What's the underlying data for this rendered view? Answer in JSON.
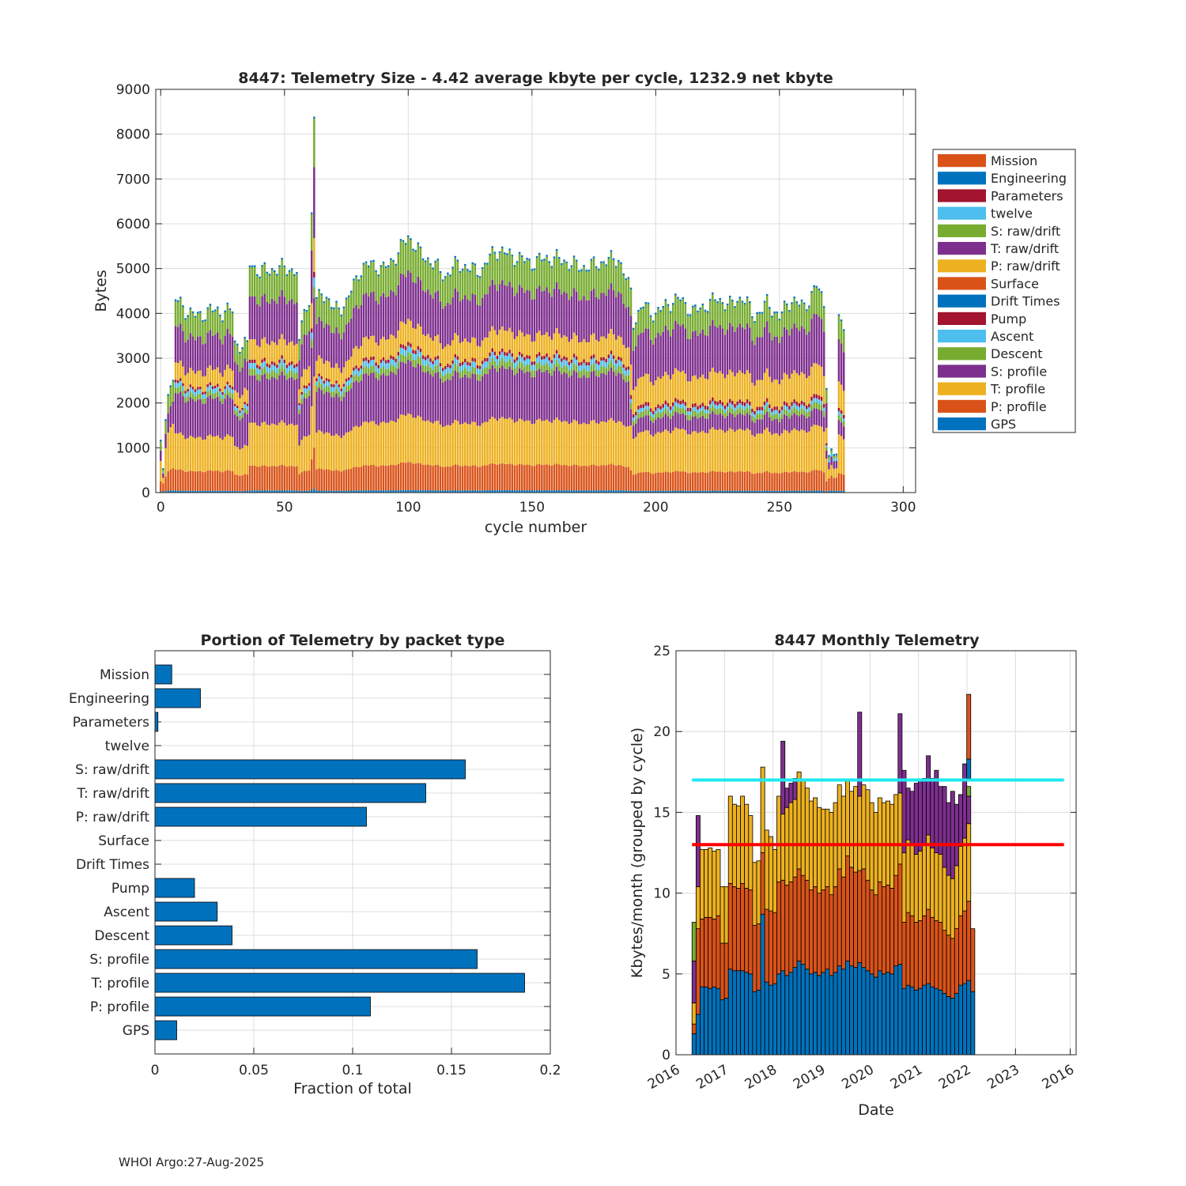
{
  "footer": "WHOI Argo:27-Aug-2025",
  "colors": {
    "blue": "#0072bd",
    "orange": "#d95319",
    "yellow": "#edb120",
    "purple": "#7e2f8e",
    "green": "#77ac30",
    "cyan": "#4dbeee",
    "red": "#a2142f",
    "line_cyan": "#1ee8f0",
    "line_red": "#ff0000",
    "grid": "#dcdcdc",
    "axis": "#262626"
  },
  "chart_data": [
    {
      "id": "telemetry-size",
      "type": "bar",
      "stacked": true,
      "title": "8447: Telemetry Size - 4.42 average kbyte per cycle, 1232.9 net kbyte",
      "xlabel": "cycle number",
      "ylabel": "Bytes",
      "xlim": [
        -2,
        305
      ],
      "ylim": [
        0,
        9000
      ],
      "xticks": [
        0,
        50,
        100,
        150,
        200,
        250,
        300
      ],
      "yticks": [
        0,
        1000,
        2000,
        3000,
        4000,
        5000,
        6000,
        7000,
        8000,
        9000
      ],
      "legend_position": "right-outside",
      "legend": [
        {
          "name": "Mission",
          "color": "#d95319"
        },
        {
          "name": "Engineering",
          "color": "#0072bd"
        },
        {
          "name": "Parameters",
          "color": "#a2142f"
        },
        {
          "name": "twelve",
          "color": "#4dbeee"
        },
        {
          "name": "S: raw/drift",
          "color": "#77ac30"
        },
        {
          "name": "T: raw/drift",
          "color": "#7e2f8e"
        },
        {
          "name": "P: raw/drift",
          "color": "#edb120"
        },
        {
          "name": "Surface",
          "color": "#d95319"
        },
        {
          "name": "Drift Times",
          "color": "#0072bd"
        },
        {
          "name": "Pump",
          "color": "#a2142f"
        },
        {
          "name": "Ascent",
          "color": "#4dbeee"
        },
        {
          "name": "Descent",
          "color": "#77ac30"
        },
        {
          "name": "S: profile",
          "color": "#7e2f8e"
        },
        {
          "name": "T: profile",
          "color": "#edb120"
        },
        {
          "name": "P: profile",
          "color": "#d95319"
        },
        {
          "name": "GPS",
          "color": "#0072bd"
        }
      ],
      "stack_order": [
        "GPS",
        "P: profile",
        "T: profile",
        "S: profile",
        "Descent",
        "Ascent",
        "Pump",
        "P: raw/drift",
        "T: raw/drift",
        "S: raw/drift",
        "Mission",
        "Engineering"
      ],
      "cycles_shown": "0-276",
      "total_profile": [
        [
          0,
          1050
        ],
        [
          1,
          330
        ],
        [
          2,
          1650
        ],
        [
          3,
          2350
        ],
        [
          5,
          2400
        ],
        [
          6,
          4300
        ],
        [
          10,
          4050
        ],
        [
          15,
          3900
        ],
        [
          20,
          4050
        ],
        [
          25,
          4000
        ],
        [
          29,
          4050
        ],
        [
          30,
          3300
        ],
        [
          35,
          3250
        ],
        [
          36,
          5100
        ],
        [
          40,
          4900
        ],
        [
          45,
          4950
        ],
        [
          50,
          5000
        ],
        [
          55,
          4900
        ],
        [
          56,
          3200
        ],
        [
          58,
          4200
        ],
        [
          60,
          4100
        ],
        [
          62,
          8350
        ],
        [
          63,
          4200
        ],
        [
          65,
          4500
        ],
        [
          70,
          4050
        ],
        [
          75,
          4200
        ],
        [
          80,
          4900
        ],
        [
          85,
          5100
        ],
        [
          90,
          4950
        ],
        [
          95,
          5250
        ],
        [
          100,
          5700
        ],
        [
          105,
          5300
        ],
        [
          110,
          5100
        ],
        [
          115,
          4800
        ],
        [
          120,
          5100
        ],
        [
          125,
          4950
        ],
        [
          130,
          4950
        ],
        [
          135,
          5400
        ],
        [
          140,
          5300
        ],
        [
          145,
          5200
        ],
        [
          150,
          5100
        ],
        [
          155,
          5200
        ],
        [
          160,
          5200
        ],
        [
          165,
          5100
        ],
        [
          170,
          5000
        ],
        [
          175,
          5050
        ],
        [
          180,
          5150
        ],
        [
          185,
          5200
        ],
        [
          190,
          4450
        ],
        [
          191,
          3800
        ],
        [
          195,
          4150
        ],
        [
          200,
          3950
        ],
        [
          205,
          4200
        ],
        [
          210,
          4300
        ],
        [
          215,
          4000
        ],
        [
          220,
          4150
        ],
        [
          225,
          4300
        ],
        [
          230,
          4150
        ],
        [
          235,
          4350
        ],
        [
          240,
          3900
        ],
        [
          245,
          4200
        ],
        [
          250,
          3900
        ],
        [
          255,
          4300
        ],
        [
          260,
          4100
        ],
        [
          265,
          4600
        ],
        [
          268,
          4200
        ],
        [
          270,
          800
        ],
        [
          272,
          800
        ],
        [
          273,
          850
        ],
        [
          274,
          3850
        ],
        [
          276,
          3800
        ]
      ]
    },
    {
      "id": "portion-by-packet",
      "type": "bar",
      "orientation": "horizontal",
      "title": "Portion of Telemetry by packet type",
      "xlabel": "Fraction of total",
      "xlim": [
        0,
        0.2
      ],
      "xticks": [
        0,
        0.05,
        0.1,
        0.15,
        0.2
      ],
      "xtick_labels": [
        "0",
        "0.05",
        "0.1",
        "0.15",
        "0.2"
      ],
      "categories": [
        "Mission",
        "Engineering",
        "Parameters",
        "twelve",
        "S: raw/drift",
        "T: raw/drift",
        "P: raw/drift",
        "Surface",
        "Drift Times",
        "Pump",
        "Ascent",
        "Descent",
        "S: profile",
        "T: profile",
        "P: profile",
        "GPS"
      ],
      "values": [
        0.0085,
        0.023,
        0.0015,
        0,
        0.157,
        0.137,
        0.107,
        0,
        0,
        0.02,
        0.0315,
        0.039,
        0.163,
        0.187,
        0.109,
        0.011
      ]
    },
    {
      "id": "monthly-telemetry",
      "type": "bar",
      "stacked": true,
      "title": "8447 Monthly Telemetry",
      "xlabel": "Date",
      "ylabel": "Kbytes/month (grouped by cycle)",
      "ylim": [
        0,
        25
      ],
      "yticks": [
        0,
        5,
        10,
        15,
        20,
        25
      ],
      "xtick_labels": [
        "2016",
        "2017",
        "2018",
        "2019",
        "2020",
        "2021",
        "2022",
        "2023",
        "2016"
      ],
      "xlim_years": [
        2016.0,
        2024.25
      ],
      "reference_lines": [
        {
          "y": 17,
          "color": "#1ee8f0"
        },
        {
          "y": 13,
          "color": "#ff0000"
        }
      ],
      "start": 2016.33,
      "month_width": 0.0833,
      "totals": [
        8.2,
        14.8,
        12.7,
        12.7,
        12.8,
        12.6,
        12.7,
        10.4,
        10.4,
        16.0,
        15.5,
        15.4,
        16.0,
        15.5,
        14.8,
        11.9,
        12.0,
        17.8,
        13.9,
        13.5,
        12.7,
        16.0,
        19.4,
        16.5,
        16.8,
        17.1,
        17.5,
        17.0,
        16.5,
        15.7,
        15.9,
        15.3,
        15.2,
        15.2,
        15.0,
        15.6,
        16.7,
        16.0,
        17.0,
        16.3,
        16.6,
        21.2,
        16.7,
        16.4,
        15.6,
        15.0,
        15.9,
        15.6,
        15.7,
        15.5,
        16.1,
        21.1,
        17.6,
        16.5,
        16.3,
        16.8,
        17.0,
        17.1,
        18.5,
        17.1,
        17.6,
        16.6,
        16.6,
        15.6,
        16.3,
        15.5,
        16.1,
        18.0,
        22.3,
        7.8
      ],
      "base_blue": [
        1.3,
        2.5,
        4.2,
        4.2,
        4.1,
        4.2,
        4.1,
        3.4,
        3.5,
        5.3,
        5.2,
        5.2,
        5.2,
        5.1,
        5.0,
        3.9,
        4.0,
        8.7,
        4.5,
        4.3,
        4.4,
        5.0,
        5.2,
        4.9,
        5.1,
        5.4,
        5.8,
        5.6,
        5.3,
        5.0,
        5.1,
        4.9,
        5.1,
        5.3,
        4.9,
        5.1,
        5.5,
        5.3,
        5.8,
        5.5,
        5.4,
        5.7,
        5.4,
        5.2,
        5.0,
        4.8,
        5.2,
        5.0,
        5.1,
        5.0,
        5.5,
        5.6,
        4.1,
        4.3,
        4.2,
        4.0,
        4.1,
        4.3,
        4.4,
        4.2,
        4.1,
        4.0,
        3.8,
        3.6,
        3.5,
        3.8,
        4.3,
        4.4,
        4.6,
        3.9
      ],
      "mid_orange": [
        1.9,
        7.8,
        8.4,
        8.5,
        8.5,
        8.4,
        8.6,
        6.9,
        6.9,
        10.6,
        10.4,
        10.3,
        10.6,
        10.3,
        10.2,
        8.0,
        8.1,
        12.5,
        9.0,
        8.9,
        8.8,
        10.7,
        10.8,
        10.5,
        10.7,
        11.0,
        11.5,
        11.1,
        10.8,
        10.2,
        10.4,
        10.0,
        10.2,
        10.4,
        9.9,
        10.4,
        11.5,
        11.0,
        12.3,
        11.6,
        11.3,
        11.4,
        11.5,
        10.8,
        10.2,
        9.9,
        10.7,
        10.4,
        10.5,
        10.3,
        11.1,
        11.8,
        8.2,
        8.8,
        8.6,
        8.2,
        8.3,
        8.6,
        9.0,
        8.5,
        8.3,
        8.2,
        7.7,
        7.4,
        7.2,
        7.8,
        8.6,
        8.9,
        9.5,
        7.8
      ],
      "mid_yellow": [
        3.2,
        10.4,
        12.7,
        12.7,
        12.8,
        12.6,
        12.7,
        10.4,
        10.4,
        16.0,
        15.5,
        15.4,
        16.0,
        15.5,
        14.8,
        11.9,
        12.0,
        17.8,
        13.9,
        13.5,
        12.7,
        16.0,
        14.9,
        15.3,
        15.6,
        15.8,
        17.5,
        17.0,
        16.5,
        15.7,
        15.9,
        15.3,
        15.2,
        15.2,
        15.0,
        15.6,
        16.7,
        16.0,
        17.0,
        16.3,
        16.6,
        16.0,
        16.7,
        16.4,
        15.6,
        15.0,
        15.9,
        15.6,
        15.7,
        15.5,
        16.1,
        16.2,
        12.5,
        13.3,
        13.0,
        12.4,
        12.6,
        13.0,
        13.6,
        12.8,
        12.5,
        12.4,
        11.6,
        11.1,
        10.9,
        11.7,
        12.9,
        13.4,
        14.3,
        7.8
      ],
      "top_purple": [
        5.8,
        14.8,
        12.7,
        12.7,
        12.8,
        12.6,
        12.7,
        10.4,
        10.4,
        16.0,
        15.5,
        15.4,
        16.0,
        15.5,
        14.8,
        11.9,
        12.0,
        17.8,
        13.9,
        13.5,
        12.7,
        16.0,
        19.4,
        16.5,
        16.8,
        17.1,
        17.5,
        17.0,
        16.5,
        15.7,
        15.9,
        15.3,
        15.2,
        15.2,
        15.0,
        15.6,
        16.7,
        16.0,
        17.0,
        16.3,
        16.6,
        21.2,
        16.7,
        16.4,
        15.6,
        15.0,
        15.9,
        15.6,
        15.7,
        15.5,
        16.1,
        21.1,
        17.6,
        16.5,
        16.3,
        16.8,
        17.0,
        17.1,
        18.5,
        17.1,
        17.6,
        16.6,
        16.6,
        15.6,
        16.3,
        15.5,
        16.1,
        18.0,
        16.0,
        7.8
      ],
      "extra_top": [
        {
          "index": 0,
          "color": "#77ac30",
          "from": 5.8,
          "to": 8.2
        },
        {
          "index": 68,
          "color": "#77ac30",
          "from": 16.0,
          "to": 16.6
        },
        {
          "index": 68,
          "color": "#0072bd",
          "from": 17.1,
          "to": 18.3
        },
        {
          "index": 68,
          "color": "#d95319",
          "from": 18.3,
          "to": 22.3
        }
      ]
    }
  ]
}
